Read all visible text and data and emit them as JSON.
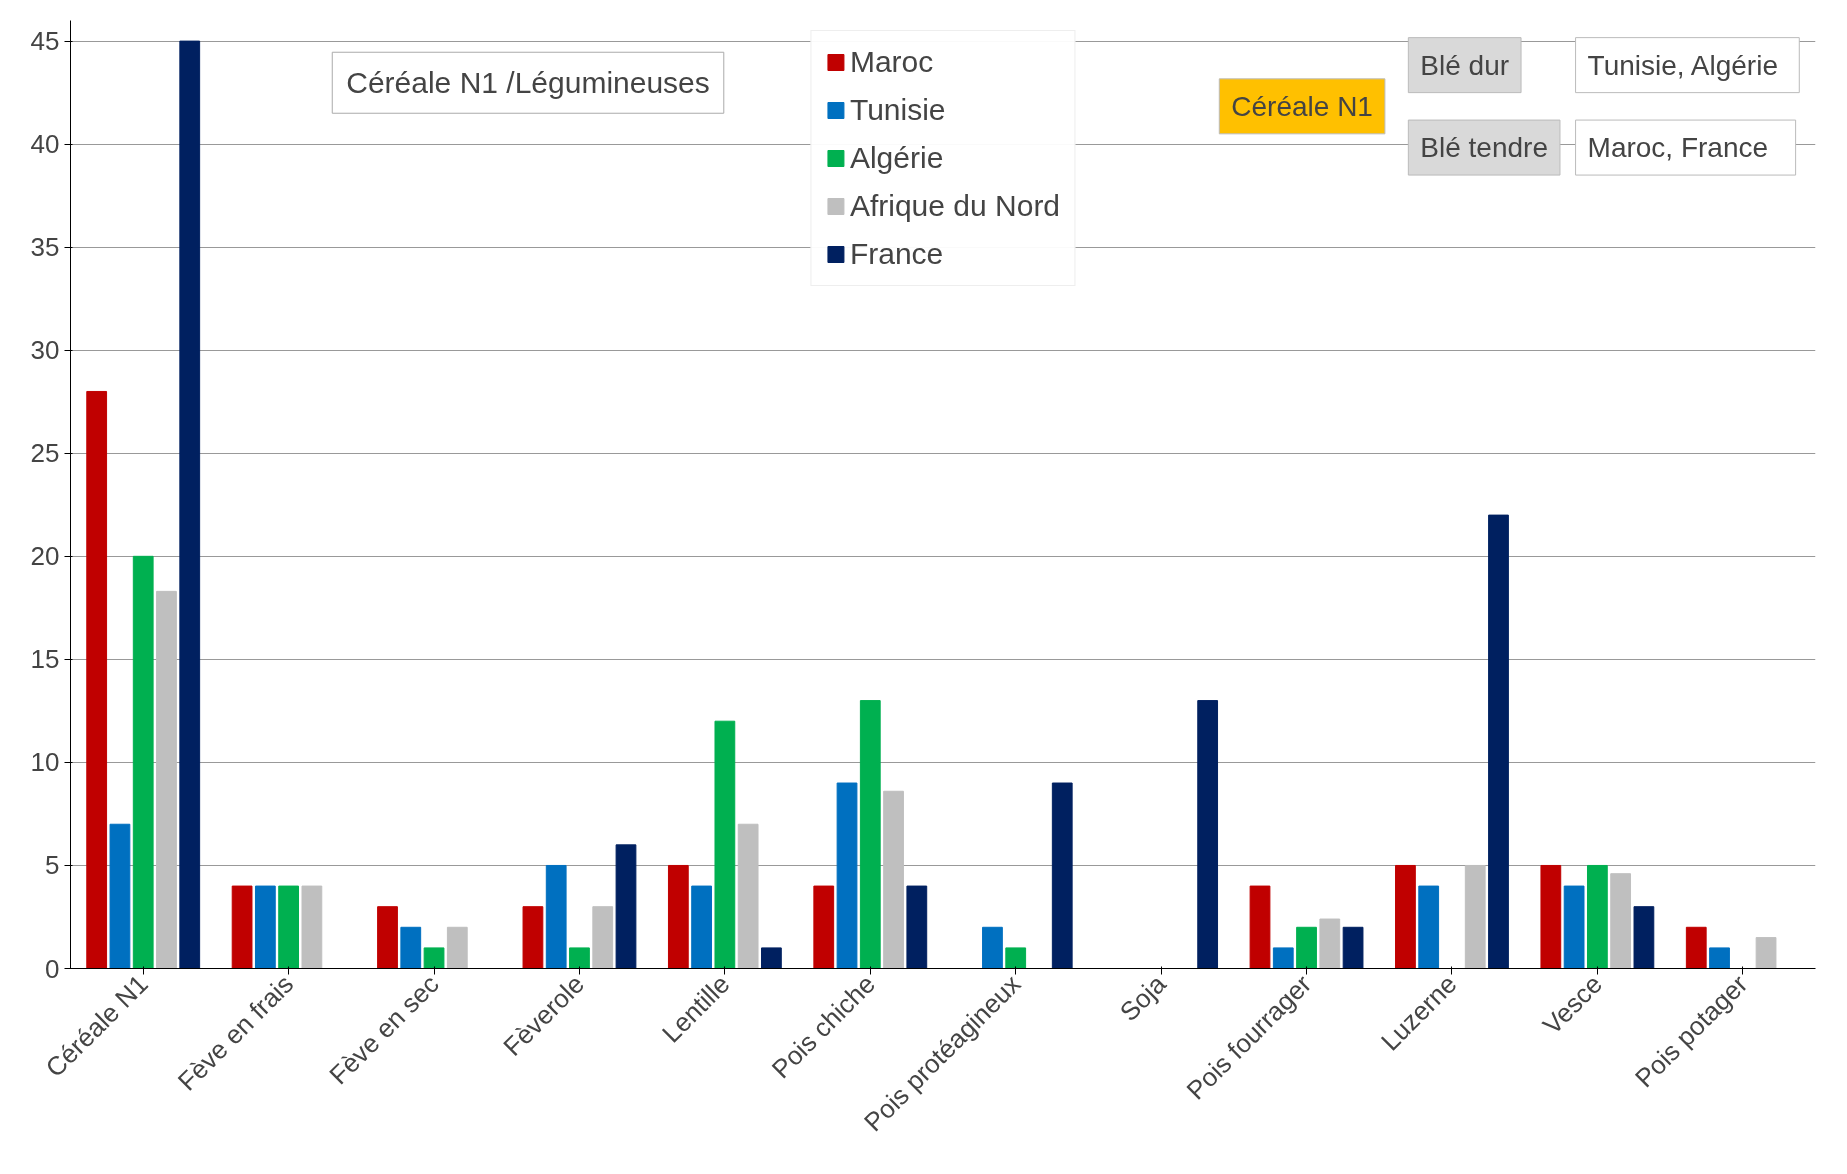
{
  "chart_data": {
    "type": "bar",
    "title": "Céréale N1 /Légumineuses",
    "categories": [
      "Céréale N1",
      "Fève en frais",
      "Fève en sec",
      "Fèverole",
      "Lentille",
      "Pois chiche",
      "Pois protéagineux",
      "Soja",
      "Pois fourrager",
      "Luzerne",
      "Vesce",
      "Pois potager"
    ],
    "series": [
      {
        "name": "Maroc",
        "color": "#c00000",
        "values": [
          28,
          4,
          3,
          3,
          5,
          4,
          0,
          0,
          4,
          5,
          5,
          2
        ]
      },
      {
        "name": "Tunisie",
        "color": "#0070c0",
        "values": [
          7,
          4,
          2,
          5,
          4,
          9,
          2,
          0,
          1,
          4,
          4,
          1
        ]
      },
      {
        "name": "Algérie",
        "color": "#00b050",
        "values": [
          20,
          4,
          1,
          1,
          12,
          13,
          1,
          0,
          2,
          0,
          5,
          0
        ]
      },
      {
        "name": "Afrique du Nord",
        "color": "#bfbfbf",
        "values": [
          18.3,
          4,
          2,
          3,
          7,
          8.6,
          0,
          0,
          2.4,
          5,
          4.6,
          1.5
        ]
      },
      {
        "name": "France",
        "color": "#002060",
        "values": [
          45,
          0,
          0,
          6,
          1,
          4,
          9,
          13,
          2,
          22,
          3,
          0
        ]
      }
    ],
    "ylim": [
      0,
      46
    ],
    "yticks": [
      0,
      5,
      10,
      15,
      20,
      25,
      30,
      35,
      40,
      45
    ],
    "grid": "y",
    "legend": "top",
    "annotations": [
      "Céréale N1",
      "Blé dur",
      "Tunisie,  Algérie",
      "Blé tendre",
      "Maroc,   France"
    ]
  }
}
